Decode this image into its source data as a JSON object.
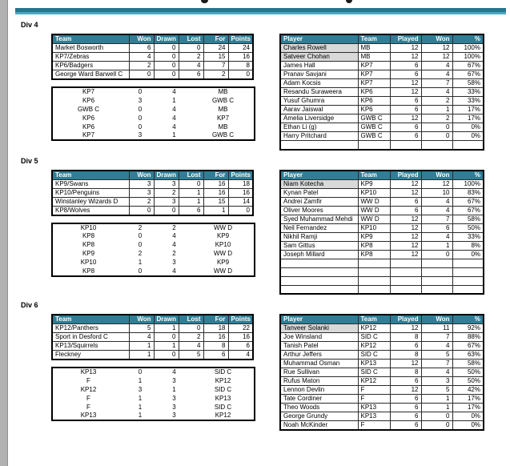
{
  "colors": {
    "accent_dark": "#26768c",
    "accent_light": "#4aa7c0",
    "table_header_bg": "#2e7f96",
    "table_header_text": "#ffffff",
    "player_highlight_bg": "#d9d9d9",
    "page_edge": "#b1b1b1"
  },
  "divisions": [
    {
      "name": "Div 4",
      "standings": {
        "headers": [
          "Team",
          "Won",
          "Drawn",
          "Lost",
          "For",
          "Points"
        ],
        "rows": [
          [
            "Market Bosworth",
            6,
            0,
            0,
            24,
            24
          ],
          [
            "KP7/Zebras",
            4,
            0,
            2,
            15,
            16
          ],
          [
            "KP6/Badgers",
            2,
            0,
            4,
            7,
            8
          ],
          [
            "George Ward Barwell C",
            0,
            0,
            6,
            2,
            0
          ]
        ]
      },
      "fixtures": [
        [
          "KP7",
          0,
          4,
          "MB"
        ],
        [
          "KP6",
          3,
          1,
          "GWB C"
        ],
        [
          "GWB C",
          0,
          4,
          "MB"
        ],
        [
          "KP6",
          0,
          4,
          "KP7"
        ],
        [
          "KP6",
          0,
          4,
          "MB"
        ],
        [
          "KP7",
          3,
          1,
          "GWB C"
        ]
      ],
      "players": {
        "headers": [
          "Player",
          "Team",
          "Played",
          "Won",
          "%"
        ],
        "rows": [
          {
            "name": "Charles Rowell",
            "team": "MB",
            "played": 12,
            "won": 12,
            "pct": "100%",
            "highlight": true
          },
          {
            "name": "Satveer Chohan",
            "team": "MB",
            "played": 12,
            "won": 12,
            "pct": "100%",
            "highlight": true
          },
          {
            "name": "James Hall",
            "team": "KP7",
            "played": 6,
            "won": 4,
            "pct": "67%"
          },
          {
            "name": "Pranav Savjani",
            "team": "KP7",
            "played": 6,
            "won": 4,
            "pct": "67%"
          },
          {
            "name": "Adam Kocsis",
            "team": "KP7",
            "played": 12,
            "won": 7,
            "pct": "58%"
          },
          {
            "name": "Resandu Suraweera",
            "team": "KP6",
            "played": 12,
            "won": 4,
            "pct": "33%"
          },
          {
            "name": "Yusuf Ghumra",
            "team": "KP6",
            "played": 6,
            "won": 2,
            "pct": "33%"
          },
          {
            "name": "Aarav Jaiswal",
            "team": "KP6",
            "played": 6,
            "won": 1,
            "pct": "17%"
          },
          {
            "name": "Amelia Liversidge",
            "team": "GWB C",
            "played": 12,
            "won": 2,
            "pct": "17%"
          },
          {
            "name": "Ethan Li (g)",
            "team": "GWB C",
            "played": 6,
            "won": 0,
            "pct": "0%"
          },
          {
            "name": "Harry Pritchard",
            "team": "GWB C",
            "played": 6,
            "won": 0,
            "pct": "0%"
          },
          {
            "name": "",
            "team": "",
            "played": "",
            "won": "",
            "pct": ""
          }
        ]
      }
    },
    {
      "name": "Div 5",
      "standings": {
        "headers": [
          "Team",
          "Won",
          "Drawn",
          "Lost",
          "For",
          "Points"
        ],
        "rows": [
          [
            "KP9/Swans",
            3,
            3,
            0,
            16,
            18
          ],
          [
            "KP10/Penguins",
            3,
            2,
            1,
            16,
            16
          ],
          [
            "Winstanley Wizards D",
            2,
            3,
            1,
            15,
            14
          ],
          [
            "KP8/Wolves",
            0,
            0,
            6,
            1,
            0
          ]
        ]
      },
      "fixtures": [
        [
          "KP10",
          2,
          2,
          "WW D"
        ],
        [
          "KP8",
          0,
          4,
          "KP9"
        ],
        [
          "KP8",
          0,
          4,
          "KP10"
        ],
        [
          "KP9",
          2,
          2,
          "WW D"
        ],
        [
          "KP10",
          1,
          3,
          "KP9"
        ],
        [
          "KP8",
          0,
          4,
          "WW D"
        ]
      ],
      "players": {
        "headers": [
          "Player",
          "Team",
          "Played",
          "Won",
          "%"
        ],
        "rows": [
          {
            "name": "Niam Kotecha",
            "team": "KP9",
            "played": 12,
            "won": 12,
            "pct": "100%",
            "highlight": true
          },
          {
            "name": "Kynan Patel",
            "team": "KP10",
            "played": 12,
            "won": 10,
            "pct": "83%"
          },
          {
            "name": "Andrei Zamfir",
            "team": "WW D",
            "played": 6,
            "won": 4,
            "pct": "67%"
          },
          {
            "name": "Oliver Moores",
            "team": "WW D",
            "played": 6,
            "won": 4,
            "pct": "67%"
          },
          {
            "name": "Syed Muhammad Mehdi",
            "team": "WW D",
            "played": 12,
            "won": 7,
            "pct": "58%"
          },
          {
            "name": "Neil Fernandez",
            "team": "KP10",
            "played": 12,
            "won": 6,
            "pct": "50%"
          },
          {
            "name": "Nikhil Ramji",
            "team": "KP9",
            "played": 12,
            "won": 4,
            "pct": "33%"
          },
          {
            "name": "Sam Gittus",
            "team": "KP8",
            "played": 12,
            "won": 1,
            "pct": "8%"
          },
          {
            "name": "Joseph Millard",
            "team": "KP8",
            "played": 12,
            "won": 0,
            "pct": "0%"
          },
          {
            "name": "",
            "team": "",
            "played": "",
            "won": "",
            "pct": ""
          },
          {
            "name": "",
            "team": "",
            "played": "",
            "won": "",
            "pct": ""
          },
          {
            "name": "",
            "team": "",
            "played": "",
            "won": "",
            "pct": ""
          },
          {
            "name": "",
            "team": "",
            "played": "",
            "won": "",
            "pct": ""
          }
        ]
      }
    },
    {
      "name": "Div 6",
      "standings": {
        "headers": [
          "Team",
          "Won",
          "Drawn",
          "Lost",
          "For",
          "Points"
        ],
        "rows": [
          [
            "KP12/Panthers",
            5,
            1,
            0,
            18,
            22
          ],
          [
            "Sport in Desford C",
            4,
            0,
            2,
            16,
            16
          ],
          [
            "KP13/Squirrels",
            1,
            1,
            4,
            8,
            6
          ],
          [
            "Fleckney",
            1,
            0,
            5,
            6,
            4
          ]
        ]
      },
      "fixtures": [
        [
          "KP13",
          0,
          4,
          "SID C"
        ],
        [
          "F",
          1,
          3,
          "KP12"
        ],
        [
          "KP12",
          3,
          1,
          "SID C"
        ],
        [
          "F",
          1,
          3,
          "KP13"
        ],
        [
          "F",
          1,
          3,
          "SID C"
        ],
        [
          "KP13",
          1,
          3,
          "KP12"
        ]
      ],
      "players": {
        "headers": [
          "Player",
          "Team",
          "Played",
          "Won",
          "%"
        ],
        "rows": [
          {
            "name": "Tanveer Solanki",
            "team": "KP12",
            "played": 12,
            "won": 11,
            "pct": "92%",
            "highlight": true
          },
          {
            "name": "Joe Winsland",
            "team": "SID C",
            "played": 8,
            "won": 7,
            "pct": "88%"
          },
          {
            "name": "Tanish Patel",
            "team": "KP12",
            "played": 6,
            "won": 4,
            "pct": "67%"
          },
          {
            "name": "Arthur Jeffers",
            "team": "SID C",
            "played": 8,
            "won": 5,
            "pct": "63%"
          },
          {
            "name": "Muhammad Osman",
            "team": "KP13",
            "played": 12,
            "won": 7,
            "pct": "58%"
          },
          {
            "name": "Rue Sullivan",
            "team": "SID C",
            "played": 8,
            "won": 4,
            "pct": "50%"
          },
          {
            "name": "Rufus Maton",
            "team": "KP12",
            "played": 6,
            "won": 3,
            "pct": "50%"
          },
          {
            "name": "Lennon Devlin",
            "team": "F",
            "played": 12,
            "won": 5,
            "pct": "42%"
          },
          {
            "name": "Tate Cordiner",
            "team": "F",
            "played": 6,
            "won": 1,
            "pct": "17%"
          },
          {
            "name": "Theo Woods",
            "team": "KP13",
            "played": 6,
            "won": 1,
            "pct": "17%"
          },
          {
            "name": "George Grundy",
            "team": "KP13",
            "played": 6,
            "won": 0,
            "pct": "0%"
          },
          {
            "name": "Noah McKinder",
            "team": "F",
            "played": 6,
            "won": 0,
            "pct": "0%"
          }
        ]
      }
    }
  ]
}
